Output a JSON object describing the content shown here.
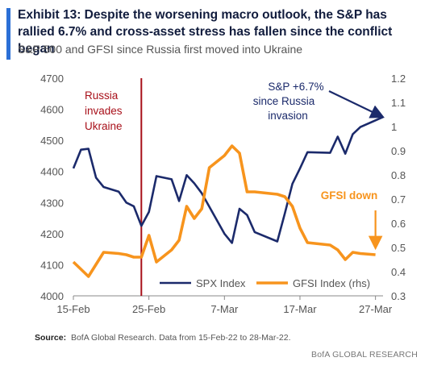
{
  "header": {
    "title": "Exhibit 13: Despite the worsening macro outlook, the S&P has rallied 6.7% and cross-asset stress has fallen since the conflict began",
    "subtitle": "S&P 500 and GFSI since Russia first moved into Ukraine"
  },
  "footer": {
    "source_label": "Source:",
    "source_text": "BofA Global Research. Data from 15-Feb-22 to 28-Mar-22.",
    "brand": "BofA GLOBAL RESEARCH"
  },
  "colors": {
    "accent": "#2b6fd6",
    "spx": "#1b2a6b",
    "gfsi": "#f7941d",
    "event": "#a8101a",
    "annotation_spx": "#1b2a6b",
    "annotation_gfsi": "#f7941d"
  },
  "chart_data": {
    "type": "line",
    "title": "",
    "xlabel": "",
    "ylabel": "",
    "x_range": [
      "2022-02-15",
      "2022-03-28"
    ],
    "x_ticks": [
      {
        "date": "2022-02-15",
        "label": "15-Feb"
      },
      {
        "date": "2022-02-25",
        "label": "25-Feb"
      },
      {
        "date": "2022-03-07",
        "label": "7-Mar"
      },
      {
        "date": "2022-03-17",
        "label": "17-Mar"
      },
      {
        "date": "2022-03-27",
        "label": "27-Mar"
      }
    ],
    "ylim_left": [
      4000,
      4700
    ],
    "yticks_left": [
      4000,
      4100,
      4200,
      4300,
      4400,
      4500,
      4600,
      4700
    ],
    "ylim_right": [
      0.3,
      1.2
    ],
    "yticks_right": [
      "0.3",
      "0.4",
      "0.5",
      "0.6",
      "0.7",
      "0.8",
      "0.9",
      "1",
      "1.1",
      "1.2"
    ],
    "grid": false,
    "legend": "bottom-center",
    "series": [
      {
        "name": "SPX Index",
        "axis": "left",
        "points": [
          [
            "2022-02-15",
            4410
          ],
          [
            "2022-02-16",
            4470
          ],
          [
            "2022-02-17",
            4473
          ],
          [
            "2022-02-18",
            4380
          ],
          [
            "2022-02-19",
            4350
          ],
          [
            "2022-02-21",
            4335
          ],
          [
            "2022-02-22",
            4300
          ],
          [
            "2022-02-23",
            4288
          ],
          [
            "2022-02-24",
            4225
          ],
          [
            "2022-02-25",
            4270
          ],
          [
            "2022-02-26",
            4385
          ],
          [
            "2022-02-28",
            4375
          ],
          [
            "2022-03-01",
            4305
          ],
          [
            "2022-03-02",
            4388
          ],
          [
            "2022-03-03",
            4362
          ],
          [
            "2022-03-04",
            4330
          ],
          [
            "2022-03-07",
            4200
          ],
          [
            "2022-03-08",
            4170
          ],
          [
            "2022-03-09",
            4280
          ],
          [
            "2022-03-10",
            4260
          ],
          [
            "2022-03-11",
            4205
          ],
          [
            "2022-03-14",
            4175
          ],
          [
            "2022-03-15",
            4265
          ],
          [
            "2022-03-16",
            4360
          ],
          [
            "2022-03-17",
            4410
          ],
          [
            "2022-03-18",
            4462
          ],
          [
            "2022-03-21",
            4460
          ],
          [
            "2022-03-22",
            4512
          ],
          [
            "2022-03-23",
            4457
          ],
          [
            "2022-03-24",
            4520
          ],
          [
            "2022-03-25",
            4543
          ],
          [
            "2022-03-28",
            4575
          ]
        ]
      },
      {
        "name": "GFSI Index (rhs)",
        "axis": "right",
        "points": [
          [
            "2022-02-15",
            0.44
          ],
          [
            "2022-02-16",
            0.41
          ],
          [
            "2022-02-17",
            0.38
          ],
          [
            "2022-02-18",
            0.43
          ],
          [
            "2022-02-19",
            0.48
          ],
          [
            "2022-02-21",
            0.475
          ],
          [
            "2022-02-22",
            0.47
          ],
          [
            "2022-02-23",
            0.46
          ],
          [
            "2022-02-24",
            0.46
          ],
          [
            "2022-02-25",
            0.55
          ],
          [
            "2022-02-26",
            0.44
          ],
          [
            "2022-02-28",
            0.49
          ],
          [
            "2022-03-01",
            0.53
          ],
          [
            "2022-03-02",
            0.67
          ],
          [
            "2022-03-03",
            0.62
          ],
          [
            "2022-03-04",
            0.66
          ],
          [
            "2022-03-05",
            0.83
          ],
          [
            "2022-03-07",
            0.88
          ],
          [
            "2022-03-08",
            0.92
          ],
          [
            "2022-03-09",
            0.89
          ],
          [
            "2022-03-10",
            0.73
          ],
          [
            "2022-03-11",
            0.73
          ],
          [
            "2022-03-14",
            0.72
          ],
          [
            "2022-03-15",
            0.71
          ],
          [
            "2022-03-16",
            0.67
          ],
          [
            "2022-03-17",
            0.58
          ],
          [
            "2022-03-18",
            0.52
          ],
          [
            "2022-03-21",
            0.51
          ],
          [
            "2022-03-22",
            0.49
          ],
          [
            "2022-03-23",
            0.45
          ],
          [
            "2022-03-24",
            0.48
          ],
          [
            "2022-03-25",
            0.475
          ],
          [
            "2022-03-27",
            0.47
          ]
        ]
      }
    ],
    "event_marker": {
      "date": "2022-02-24",
      "label_lines": [
        "Russia",
        "invades",
        "Ukraine"
      ]
    },
    "annotations": [
      {
        "text_lines": [
          "S&P +6.7%",
          "since Russia",
          "invasion"
        ],
        "series": "SPX Index",
        "arrow_to": [
          "2022-03-28",
          4575
        ]
      },
      {
        "text_lines": [
          "GFSI down"
        ],
        "series": "GFSI Index (rhs)",
        "arrow_to": [
          "2022-03-27",
          0.47
        ]
      }
    ]
  }
}
